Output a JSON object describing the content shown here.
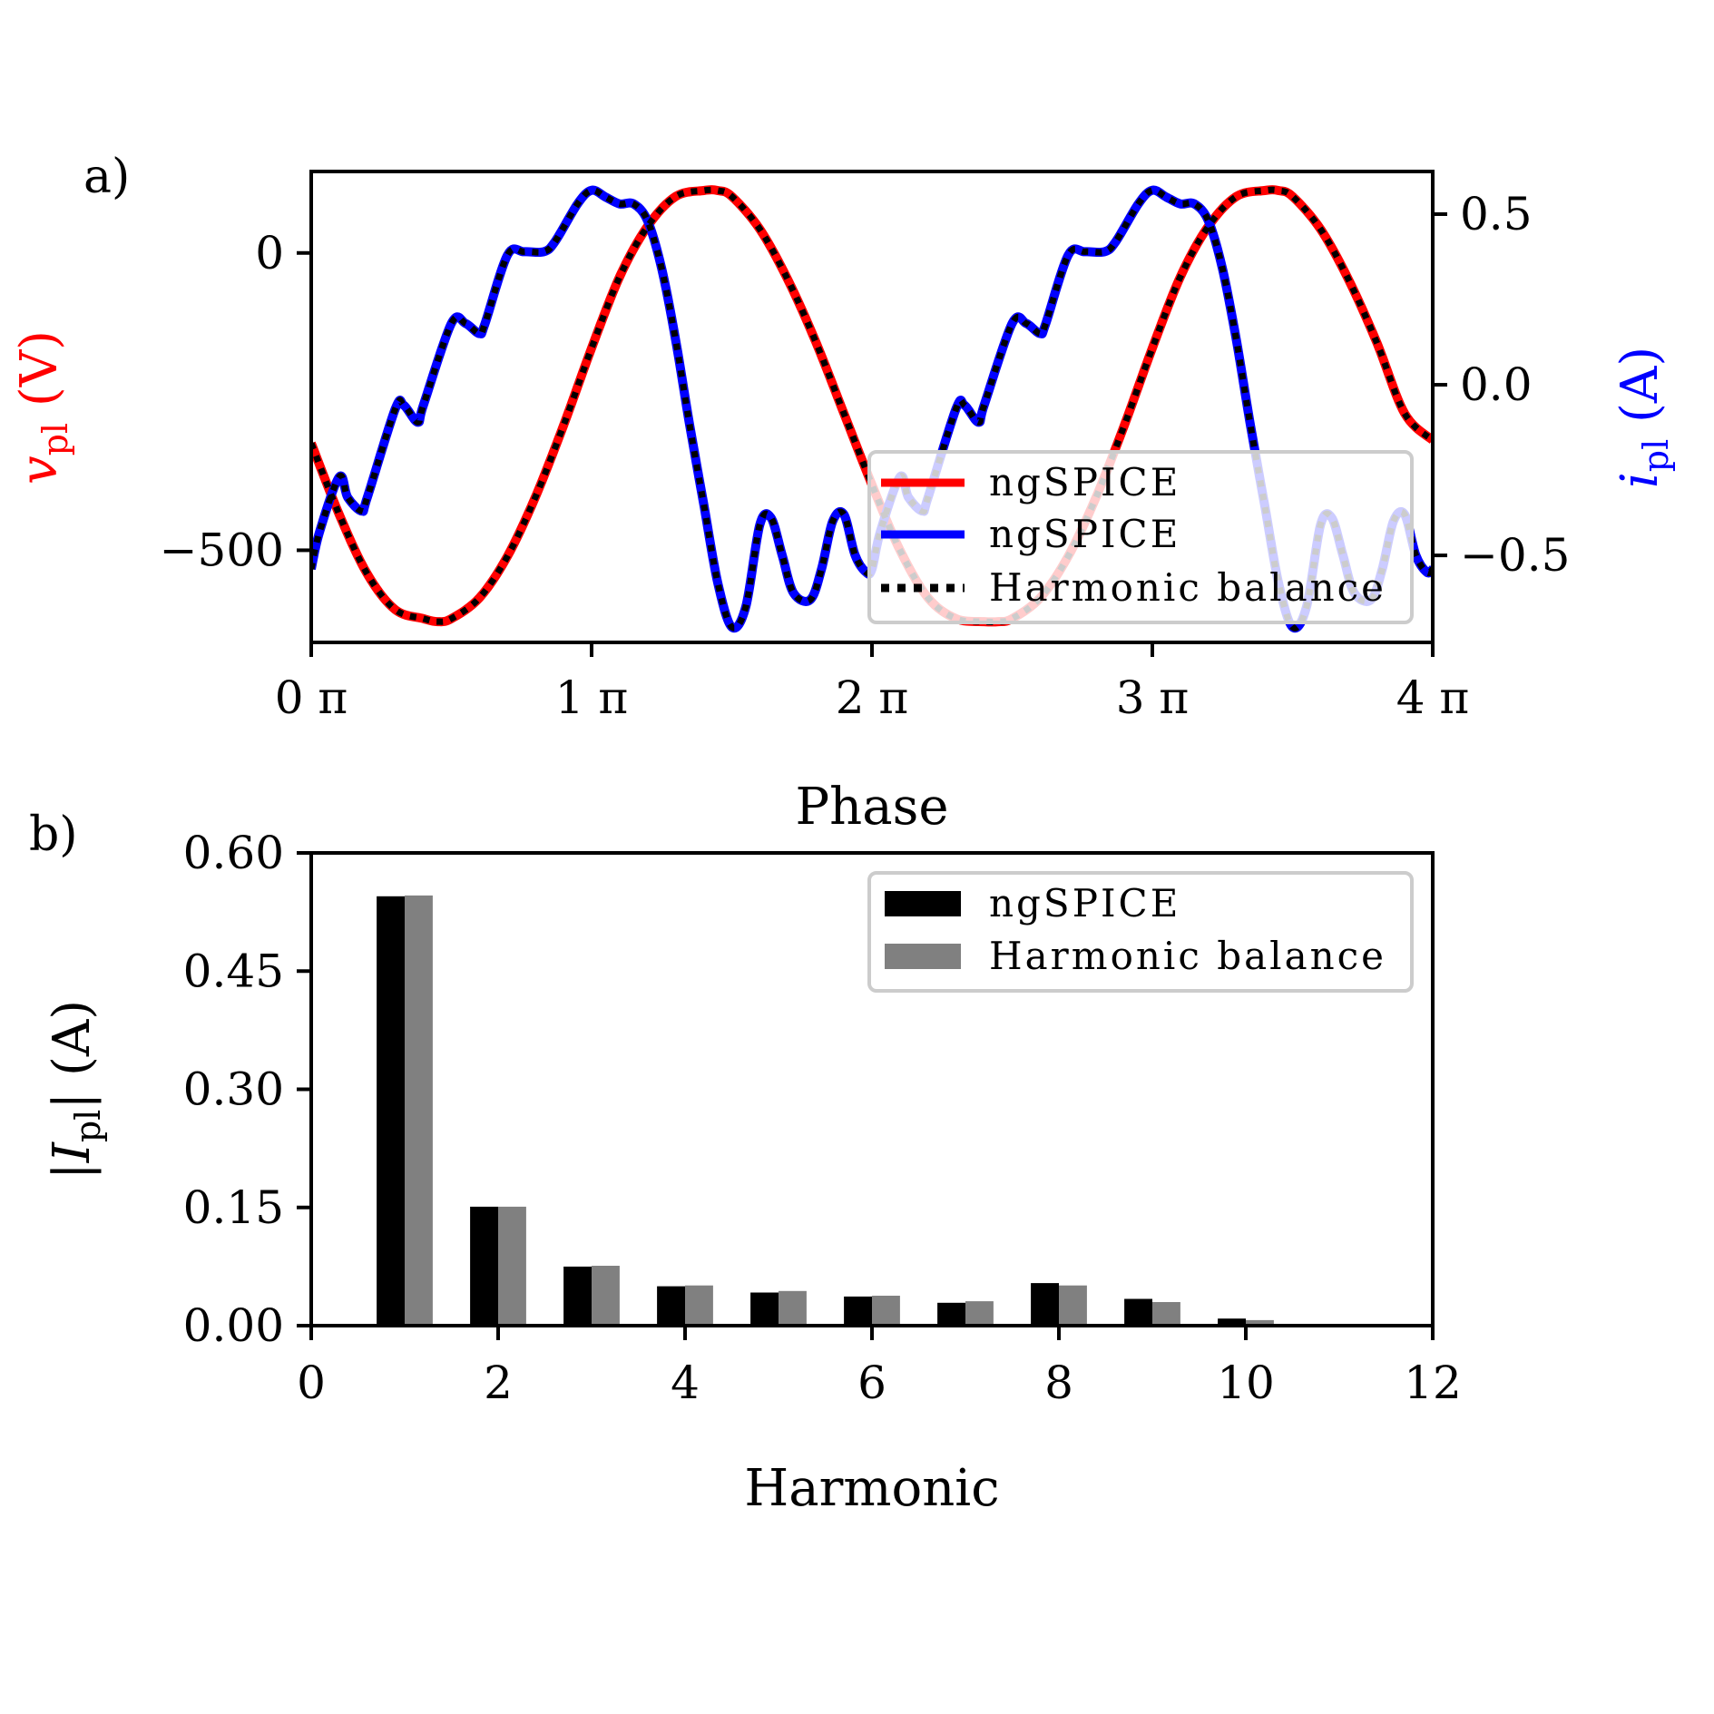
{
  "chart_data": [
    {
      "panel_label": "a)",
      "type": "line",
      "xlabel": "Phase",
      "x_ticks": [
        "0 π",
        "1 π",
        "2 π",
        "3 π",
        "4 π"
      ],
      "xlim": [
        0,
        4
      ],
      "x_unit": "π",
      "y_left": {
        "label_main": "v",
        "label_sub": "pl",
        "label_unit": " (V)",
        "color": "#ff0000",
        "ticks": [
          "0",
          "−500"
        ],
        "tick_values": [
          0,
          -500
        ],
        "ylim": [
          -655,
          137
        ]
      },
      "y_right": {
        "label_main": "i",
        "label_sub": "pl",
        "label_unit": " (A)",
        "color": "#0000ff",
        "ticks": [
          "0.5",
          "0.0",
          "−0.5"
        ],
        "tick_values": [
          0.5,
          0.0,
          -0.5
        ],
        "ylim": [
          -0.755,
          0.625
        ]
      },
      "series": [
        {
          "name": "ngSPICE",
          "axis": "left",
          "color": "#ff0000",
          "style": "solid",
          "x": [
            0,
            0.1,
            0.2,
            0.3,
            0.4,
            0.45,
            0.5,
            0.6,
            0.7,
            0.8,
            0.9,
            1.0,
            1.1,
            1.2,
            1.3,
            1.4,
            1.45,
            1.5,
            1.6,
            1.7,
            1.8,
            1.9,
            2.0,
            2.1,
            2.2,
            2.3,
            2.4,
            2.45,
            2.5,
            2.6,
            2.7,
            2.8,
            2.9,
            3.0,
            3.1,
            3.2,
            3.3,
            3.4,
            3.45,
            3.5,
            3.6,
            3.7,
            3.8,
            3.9,
            4.0
          ],
          "y": [
            -320,
            -440,
            -540,
            -600,
            -615,
            -620,
            -615,
            -580,
            -510,
            -410,
            -290,
            -160,
            -40,
            45,
            95,
            105,
            105,
            95,
            40,
            -45,
            -150,
            -270,
            -390,
            -500,
            -580,
            -615,
            -620,
            -620,
            -615,
            -580,
            -510,
            -410,
            -290,
            -160,
            -40,
            45,
            95,
            105,
            105,
            95,
            40,
            -45,
            -150,
            -270,
            -315
          ]
        },
        {
          "name": "ngSPICE",
          "axis": "right",
          "color": "#0000ff",
          "style": "solid",
          "x": [
            0,
            0.03,
            0.1,
            0.13,
            0.18,
            0.2,
            0.3,
            0.33,
            0.38,
            0.4,
            0.5,
            0.55,
            0.6,
            0.62,
            0.7,
            0.76,
            0.83,
            0.87,
            0.95,
            1.0,
            1.05,
            1.1,
            1.15,
            1.2,
            1.25,
            1.3,
            1.35,
            1.4,
            1.45,
            1.5,
            1.55,
            1.6,
            1.64,
            1.68,
            1.72,
            1.78,
            1.82,
            1.86,
            1.9,
            1.94,
            1.98,
            2.0,
            2.03,
            2.1,
            2.13,
            2.18,
            2.2,
            2.3,
            2.33,
            2.38,
            2.4,
            2.5,
            2.55,
            2.6,
            2.62,
            2.7,
            2.76,
            2.83,
            2.87,
            2.95,
            3.0,
            3.05,
            3.1,
            3.15,
            3.2,
            3.25,
            3.3,
            3.35,
            3.4,
            3.45,
            3.5,
            3.55,
            3.6,
            3.64,
            3.68,
            3.72,
            3.78,
            3.82,
            3.86,
            3.9,
            3.94,
            3.98,
            4.0
          ],
          "y": [
            -0.54,
            -0.43,
            -0.27,
            -0.33,
            -0.37,
            -0.33,
            -0.07,
            -0.06,
            -0.11,
            -0.06,
            0.18,
            0.18,
            0.15,
            0.18,
            0.38,
            0.39,
            0.39,
            0.42,
            0.53,
            0.57,
            0.55,
            0.53,
            0.53,
            0.48,
            0.34,
            0.13,
            -0.12,
            -0.35,
            -0.58,
            -0.71,
            -0.65,
            -0.41,
            -0.39,
            -0.5,
            -0.61,
            -0.63,
            -0.54,
            -0.4,
            -0.38,
            -0.5,
            -0.55,
            -0.54,
            -0.43,
            -0.27,
            -0.33,
            -0.37,
            -0.33,
            -0.07,
            -0.06,
            -0.11,
            -0.06,
            0.18,
            0.18,
            0.15,
            0.18,
            0.38,
            0.39,
            0.39,
            0.42,
            0.53,
            0.57,
            0.55,
            0.53,
            0.53,
            0.48,
            0.34,
            0.13,
            -0.12,
            -0.35,
            -0.58,
            -0.71,
            -0.65,
            -0.41,
            -0.39,
            -0.5,
            -0.61,
            -0.63,
            -0.54,
            -0.4,
            -0.38,
            -0.5,
            -0.55,
            -0.54
          ]
        },
        {
          "name": "Harmonic balance",
          "axis": "both",
          "color": "#000000",
          "style": "dotted",
          "overlays": [
            "left",
            "right"
          ]
        }
      ],
      "legend": {
        "placement": "lower-right",
        "entries": [
          {
            "label": "ngSPICE",
            "color": "#ff0000",
            "style": "solid"
          },
          {
            "label": "ngSPICE",
            "color": "#0000ff",
            "style": "solid"
          },
          {
            "label": "Harmonic balance",
            "color": "#000000",
            "style": "dotted"
          }
        ]
      }
    },
    {
      "panel_label": "b)",
      "type": "bar",
      "xlabel": "Harmonic",
      "ylabel_parts": [
        "|",
        "I",
        "pl",
        "| (A)"
      ],
      "xlim": [
        0,
        12
      ],
      "ylim": [
        0,
        0.6
      ],
      "x_ticks": [
        "0",
        "2",
        "4",
        "6",
        "8",
        "10",
        "12"
      ],
      "x_tick_values": [
        0,
        2,
        4,
        6,
        8,
        10,
        12
      ],
      "y_ticks": [
        "0.00",
        "0.15",
        "0.30",
        "0.45",
        "0.60"
      ],
      "y_tick_values": [
        0,
        0.15,
        0.3,
        0.45,
        0.6
      ],
      "categories": [
        1,
        2,
        3,
        4,
        5,
        6,
        7,
        8,
        9,
        10
      ],
      "series": [
        {
          "name": "ngSPICE",
          "color": "#000000",
          "values": [
            0.545,
            0.151,
            0.075,
            0.05,
            0.042,
            0.037,
            0.029,
            0.054,
            0.034,
            0.009
          ]
        },
        {
          "name": "Harmonic balance",
          "color": "#808080",
          "values": [
            0.546,
            0.151,
            0.076,
            0.051,
            0.044,
            0.038,
            0.031,
            0.051,
            0.03,
            0.007
          ]
        }
      ],
      "legend": {
        "placement": "top-right"
      }
    }
  ]
}
